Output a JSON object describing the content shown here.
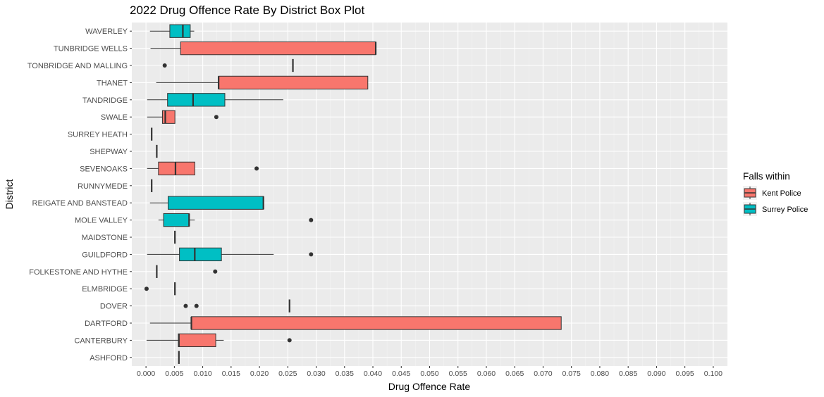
{
  "chart_data": {
    "type": "boxplot",
    "title": "2022 Drug Offence Rate By District Box Plot",
    "xlabel": "Drug Offence Rate",
    "ylabel": "District",
    "xlim": [
      -0.0025,
      0.1025
    ],
    "x_ticks": [
      "0.000",
      "0.005",
      "0.010",
      "0.015",
      "0.020",
      "0.025",
      "0.030",
      "0.035",
      "0.040",
      "0.045",
      "0.050",
      "0.055",
      "0.060",
      "0.065",
      "0.070",
      "0.075",
      "0.080",
      "0.085",
      "0.090",
      "0.095",
      "0.100"
    ],
    "grid": true,
    "legend": {
      "title": "Falls within",
      "position": "right",
      "entries": [
        {
          "name": "Kent Police",
          "color": "#F8766D"
        },
        {
          "name": "Surrey Police",
          "color": "#00BFC4"
        }
      ]
    },
    "categories": [
      "WAVERLEY",
      "TUNBRIDGE WELLS",
      "TONBRIDGE AND MALLING",
      "THANET",
      "TANDRIDGE",
      "SWALE",
      "SURREY HEATH",
      "SHEPWAY",
      "SEVENOAKS",
      "RUNNYMEDE",
      "REIGATE AND BANSTEAD",
      "MOLE VALLEY",
      "MAIDSTONE",
      "GUILDFORD",
      "FOLKESTONE AND HYTHE",
      "ELMBRIDGE",
      "DOVER",
      "DARTFORD",
      "CANTERBURY",
      "ASHFORD"
    ],
    "boxes": [
      {
        "district": "WAVERLEY",
        "force": "Surrey Police",
        "min": 0.0007,
        "q1": 0.0042,
        "median": 0.0065,
        "q3": 0.0078,
        "max": 0.0085,
        "outliers": []
      },
      {
        "district": "TUNBRIDGE WELLS",
        "force": "Kent Police",
        "min": 0.0008,
        "q1": 0.0061,
        "median": 0.0405,
        "q3": 0.0405,
        "max": 0.0405,
        "outliers": []
      },
      {
        "district": "TONBRIDGE AND MALLING",
        "force": "Kent Police",
        "min": 0.0259,
        "q1": 0.0259,
        "median": 0.0259,
        "q3": 0.0259,
        "max": 0.0259,
        "outliers": [
          0.0033
        ]
      },
      {
        "district": "THANET",
        "force": "Kent Police",
        "min": 0.0018,
        "q1": 0.0128,
        "median": 0.0128,
        "q3": 0.0391,
        "max": 0.0391,
        "outliers": []
      },
      {
        "district": "TANDRIDGE",
        "force": "Surrey Police",
        "min": 0.0002,
        "q1": 0.0038,
        "median": 0.0083,
        "q3": 0.0139,
        "max": 0.0242,
        "outliers": []
      },
      {
        "district": "SWALE",
        "force": "Kent Police",
        "min": 0.0002,
        "q1": 0.0029,
        "median": 0.0034,
        "q3": 0.0051,
        "max": 0.0051,
        "outliers": [
          0.0124
        ]
      },
      {
        "district": "SURREY HEATH",
        "force": "Surrey Police",
        "min": 0.001,
        "q1": 0.001,
        "median": 0.001,
        "q3": 0.001,
        "max": 0.001,
        "outliers": []
      },
      {
        "district": "SHEPWAY",
        "force": "Kent Police",
        "min": 0.0019,
        "q1": 0.0019,
        "median": 0.0019,
        "q3": 0.0019,
        "max": 0.0019,
        "outliers": []
      },
      {
        "district": "SEVENOAKS",
        "force": "Kent Police",
        "min": 0.0002,
        "q1": 0.0022,
        "median": 0.0052,
        "q3": 0.0086,
        "max": 0.0086,
        "outliers": [
          0.0195
        ]
      },
      {
        "district": "RUNNYMEDE",
        "force": "Surrey Police",
        "min": 0.001,
        "q1": 0.001,
        "median": 0.001,
        "q3": 0.001,
        "max": 0.001,
        "outliers": []
      },
      {
        "district": "REIGATE AND BANSTEAD",
        "force": "Surrey Police",
        "min": 0.0007,
        "q1": 0.0039,
        "median": 0.0207,
        "q3": 0.0207,
        "max": 0.0207,
        "outliers": []
      },
      {
        "district": "MOLE VALLEY",
        "force": "Surrey Police",
        "min": 0.0022,
        "q1": 0.0031,
        "median": 0.0076,
        "q3": 0.0076,
        "max": 0.0086,
        "outliers": [
          0.0291
        ]
      },
      {
        "district": "MAIDSTONE",
        "force": "Kent Police",
        "min": 0.0051,
        "q1": 0.0051,
        "median": 0.0051,
        "q3": 0.0051,
        "max": 0.0051,
        "outliers": []
      },
      {
        "district": "GUILDFORD",
        "force": "Surrey Police",
        "min": 0.0002,
        "q1": 0.0059,
        "median": 0.0086,
        "q3": 0.0133,
        "max": 0.0225,
        "outliers": [
          0.0291
        ]
      },
      {
        "district": "FOLKESTONE AND HYTHE",
        "force": "Kent Police",
        "min": 0.0019,
        "q1": 0.0019,
        "median": 0.0019,
        "q3": 0.0019,
        "max": 0.0019,
        "outliers": [
          0.0122
        ]
      },
      {
        "district": "ELMBRIDGE",
        "force": "Surrey Police",
        "min": 0.0051,
        "q1": 0.0051,
        "median": 0.0051,
        "q3": 0.0051,
        "max": 0.0051,
        "outliers": [
          0.0001
        ]
      },
      {
        "district": "DOVER",
        "force": "Kent Police",
        "min": 0.0253,
        "q1": 0.0253,
        "median": 0.0253,
        "q3": 0.0253,
        "max": 0.0253,
        "outliers": [
          0.007,
          0.0089
        ]
      },
      {
        "district": "DARTFORD",
        "force": "Kent Police",
        "min": 0.0007,
        "q1": 0.008,
        "median": 0.008,
        "q3": 0.0732,
        "max": 0.0732,
        "outliers": []
      },
      {
        "district": "CANTERBURY",
        "force": "Kent Police",
        "min": 0.0001,
        "q1": 0.0057,
        "median": 0.0058,
        "q3": 0.0123,
        "max": 0.0137,
        "outliers": [
          0.0253
        ]
      },
      {
        "district": "ASHFORD",
        "force": "Kent Police",
        "min": 0.0058,
        "q1": 0.0058,
        "median": 0.0058,
        "q3": 0.0058,
        "max": 0.0058,
        "outliers": []
      }
    ]
  }
}
